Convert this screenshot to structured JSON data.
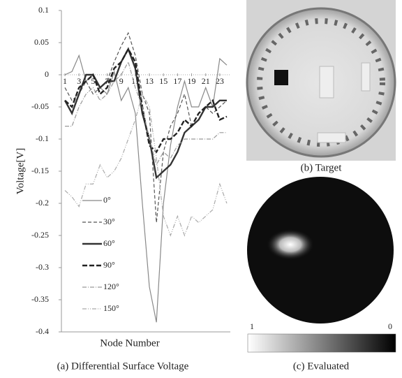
{
  "chart_data": {
    "type": "line",
    "caption": "(a) Differential Surface Voltage",
    "x_label": "Node Number",
    "y_label": "Voltage[V]",
    "x": [
      1,
      2,
      3,
      4,
      5,
      6,
      7,
      8,
      9,
      10,
      11,
      12,
      13,
      14,
      15,
      16,
      17,
      18,
      19,
      20,
      21,
      22,
      23,
      24
    ],
    "xlim": [
      0.5,
      24.5
    ],
    "xticks": [
      1,
      3,
      5,
      7,
      9,
      11,
      13,
      15,
      17,
      19,
      21,
      23
    ],
    "ylim": [
      -0.4,
      0.1
    ],
    "yticks": [
      0.1,
      0.05,
      0,
      -0.05,
      -0.1,
      -0.15,
      -0.2,
      -0.25,
      -0.3,
      -0.35,
      -0.4
    ],
    "series": [
      {
        "name": "0°",
        "color": "#888888",
        "width": 1.2,
        "dash": "none",
        "values": [
          0,
          0.005,
          0.03,
          -0.01,
          0,
          -0.02,
          -0.03,
          0.005,
          -0.04,
          -0.02,
          -0.06,
          -0.2,
          -0.33,
          -0.385,
          -0.2,
          -0.11,
          -0.05,
          -0.01,
          -0.05,
          -0.05,
          -0.02,
          -0.05,
          0.025,
          0.015
        ]
      },
      {
        "name": "30°",
        "color": "#555555",
        "width": 1.2,
        "dash": "5 3",
        "values": [
          -0.02,
          -0.04,
          -0.03,
          -0.01,
          -0.03,
          -0.02,
          -0.01,
          0.02,
          0.045,
          0.065,
          0.03,
          -0.03,
          -0.06,
          -0.23,
          -0.12,
          -0.08,
          -0.06,
          -0.03,
          -0.08,
          -0.07,
          -0.05,
          -0.06,
          -0.05,
          -0.04
        ]
      },
      {
        "name": "60°",
        "color": "#333333",
        "width": 2.4,
        "dash": "none",
        "values": [
          -0.04,
          -0.06,
          -0.03,
          0,
          0,
          -0.02,
          -0.01,
          -0.01,
          0.02,
          0.04,
          0.01,
          -0.06,
          -0.1,
          -0.16,
          -0.15,
          -0.14,
          -0.12,
          -0.09,
          -0.08,
          -0.07,
          -0.05,
          -0.05,
          -0.04,
          -0.04
        ]
      },
      {
        "name": "90°",
        "color": "#222222",
        "width": 2.4,
        "dash": "7 3",
        "values": [
          -0.04,
          -0.05,
          -0.02,
          -0.01,
          0,
          -0.03,
          -0.02,
          0.01,
          0.02,
          0.04,
          0.02,
          -0.05,
          -0.11,
          -0.12,
          -0.1,
          -0.1,
          -0.09,
          -0.07,
          -0.08,
          -0.06,
          -0.05,
          -0.04,
          -0.07,
          -0.065
        ]
      },
      {
        "name": "120°",
        "color": "#999999",
        "width": 1.2,
        "dash": "6 2 1 2",
        "values": [
          -0.08,
          -0.08,
          -0.05,
          -0.03,
          -0.02,
          -0.04,
          -0.03,
          -0.01,
          0,
          0.02,
          -0.02,
          -0.05,
          -0.1,
          -0.14,
          -0.12,
          -0.13,
          -0.11,
          -0.1,
          -0.1,
          -0.1,
          -0.1,
          -0.1,
          -0.09,
          -0.09
        ]
      },
      {
        "name": "150°",
        "color": "#aaaaaa",
        "width": 1.2,
        "dash": "6 2 1 2 1 2",
        "values": [
          -0.18,
          -0.19,
          -0.205,
          -0.17,
          -0.17,
          -0.14,
          -0.16,
          -0.15,
          -0.13,
          -0.1,
          -0.07,
          -0.03,
          -0.05,
          -0.13,
          -0.22,
          -0.25,
          -0.22,
          -0.25,
          -0.22,
          -0.23,
          -0.22,
          -0.21,
          -0.17,
          -0.2
        ]
      }
    ]
  },
  "target": {
    "caption": "(b) Target"
  },
  "evaluated": {
    "caption": "(c) Evaluated",
    "colorbar_labels": [
      "1",
      "0"
    ]
  }
}
